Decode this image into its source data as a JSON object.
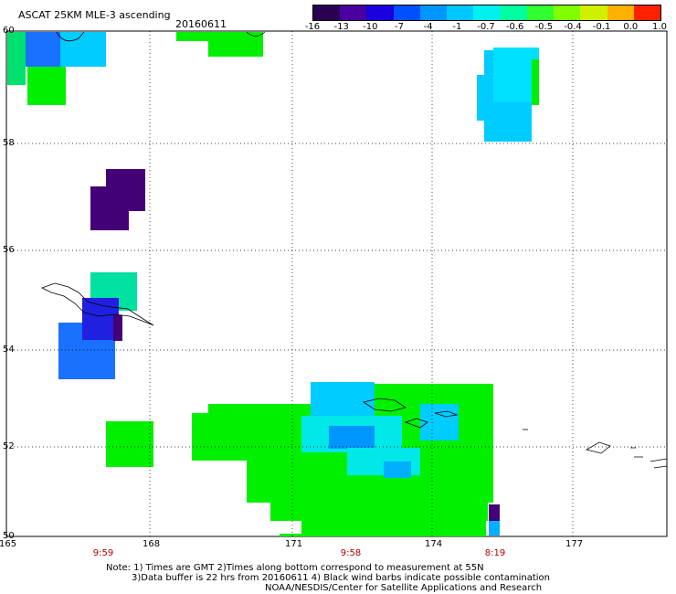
{
  "header": {
    "product_title": "ASCAT 25KM MLE-3 ascending",
    "date": "20160611"
  },
  "colorbar": {
    "labels": [
      "-16",
      "-13",
      "-10",
      "-7",
      "-4",
      "-1",
      "-0.7",
      "-0.6",
      "-0.5",
      "-0.4",
      "-0.1",
      "0.0",
      "1.0"
    ],
    "colors": [
      "#2a0050",
      "#4a00a0",
      "#1a00e0",
      "#0050ff",
      "#0096ff",
      "#00c8ff",
      "#00f0f0",
      "#00ffa0",
      "#30ff30",
      "#80ff00",
      "#d0f000",
      "#ffb000",
      "#ff2000"
    ]
  },
  "axes": {
    "lat_labels": [
      "60",
      "58",
      "56",
      "54",
      "52",
      "50"
    ],
    "lon_labels": [
      "165",
      "168",
      "171",
      "174",
      "177"
    ]
  },
  "pass_times": [
    "9:59",
    "9:58",
    "8:19"
  ],
  "notes": {
    "line1": "Note: 1) Times are GMT 2)Times along bottom correspond to measurement at 55N",
    "line2": "3)Data buffer is 22 hrs from 20160611 4) Black wind barbs indicate possible contamination",
    "line3": "NOAA/NESDIS/Center for Satellite Applications and Research"
  },
  "colors": {
    "green": "#00f000",
    "cyan": "#00ccff",
    "blue": "#0066ff",
    "purple": "#440077"
  }
}
